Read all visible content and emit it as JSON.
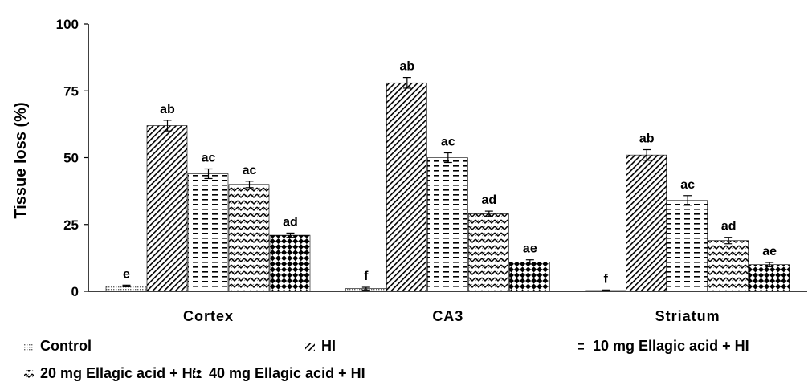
{
  "chart_data": {
    "type": "bar",
    "title": "",
    "xlabel": "",
    "ylabel": "Tissue loss (%)",
    "ylim": [
      0,
      100
    ],
    "yticks": [
      "0",
      "25",
      "50",
      "75",
      "100"
    ],
    "categories": [
      "Cortex",
      "CA3",
      "Striatum"
    ],
    "grid": false,
    "legend_position": "bottom",
    "series": [
      {
        "name": "Control",
        "pattern": "dots",
        "values": [
          2,
          1,
          0.3
        ],
        "errors": [
          0.3,
          0.5,
          0.2
        ],
        "labels": [
          "e",
          "f",
          "f"
        ]
      },
      {
        "name": "HI",
        "pattern": "diagonal-lines",
        "values": [
          62,
          78,
          51
        ],
        "errors": [
          2.0,
          2.0,
          2.0
        ],
        "labels": [
          "ab",
          "ab",
          "ab"
        ]
      },
      {
        "name": "10 mg Ellagic acid + HI",
        "pattern": "horizontal-dashes",
        "values": [
          44,
          50,
          34
        ],
        "errors": [
          1.8,
          1.8,
          1.8
        ],
        "labels": [
          "ac",
          "ac",
          "ac"
        ]
      },
      {
        "name": "20 mg Ellagic acid + HI",
        "pattern": "zigzag",
        "values": [
          40,
          29,
          19
        ],
        "errors": [
          1.2,
          1.0,
          1.2
        ],
        "labels": [
          "ac",
          "ad",
          "ad"
        ]
      },
      {
        "name": "40 mg Ellagic acid + HI",
        "pattern": "checker",
        "values": [
          21,
          11,
          10
        ],
        "errors": [
          0.8,
          0.8,
          0.8
        ],
        "labels": [
          "ad",
          "ae",
          "ae"
        ]
      }
    ]
  }
}
